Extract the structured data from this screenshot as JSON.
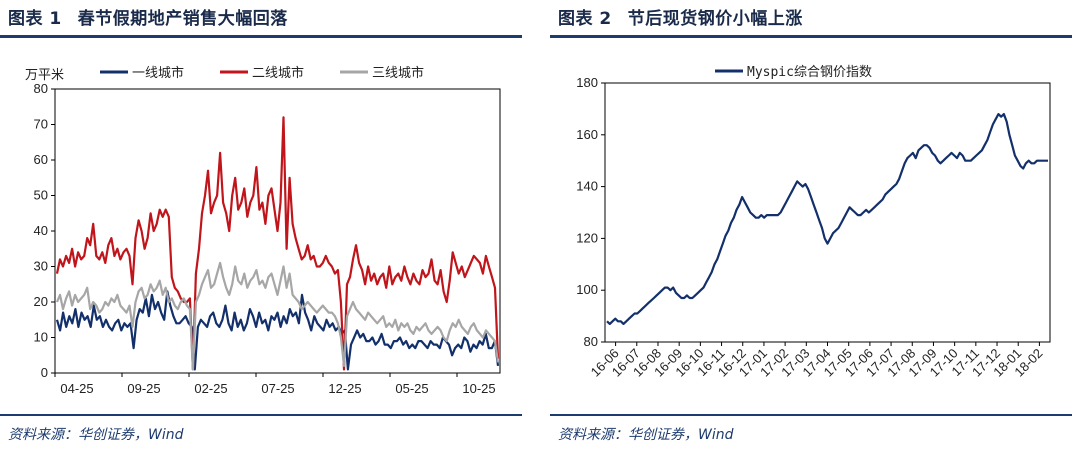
{
  "left": {
    "figure_num": "图表 1",
    "title": "春节假期地产销售大幅回落",
    "source": "资料来源：华创证券，Wind",
    "chart_data": {
      "type": "line",
      "ylabel": "万平米",
      "ylim": [
        0,
        80
      ],
      "yticks": [
        0,
        10,
        20,
        30,
        40,
        50,
        60,
        70,
        80
      ],
      "xticks": [
        "04-25",
        "09-25",
        "02-25",
        "07-25",
        "12-25",
        "05-25",
        "10-25"
      ],
      "legend_position": "top",
      "series": [
        {
          "name": "一线城市",
          "color": "#13306b",
          "values": [
            15,
            12,
            17,
            13,
            16,
            14,
            18,
            13,
            17,
            15,
            16,
            13,
            19,
            15,
            16,
            13,
            15,
            13,
            12,
            14,
            15,
            12,
            14,
            13,
            14,
            7,
            15,
            18,
            17,
            21,
            16,
            22,
            18,
            20,
            17,
            15,
            23,
            19,
            16,
            14,
            14,
            15,
            16,
            14,
            13,
            1,
            13,
            15,
            14,
            13,
            16,
            17,
            14,
            13,
            15,
            19,
            14,
            12,
            17,
            13,
            15,
            12,
            14,
            18,
            16,
            13,
            17,
            14,
            15,
            12,
            16,
            15,
            17,
            13,
            16,
            14,
            18,
            16,
            17,
            14,
            22,
            17,
            15,
            12,
            16,
            14,
            13,
            12,
            15,
            13,
            14,
            12,
            13,
            11,
            12,
            1,
            8,
            10,
            12,
            10,
            11,
            9,
            9,
            10,
            8,
            9,
            11,
            8,
            8,
            7,
            9,
            9,
            10,
            8,
            9,
            7,
            8,
            7,
            9,
            9,
            8,
            7,
            9,
            8,
            8,
            7,
            10,
            9,
            8,
            5,
            7,
            8,
            7,
            10,
            9,
            6,
            8,
            7,
            9,
            8,
            11,
            7,
            7,
            9,
            2
          ]
        },
        {
          "name": "二线城市",
          "color": "#c0151b",
          "values": [
            28,
            32,
            30,
            33,
            31,
            35,
            30,
            34,
            32,
            33,
            38,
            36,
            42,
            33,
            32,
            34,
            31,
            36,
            38,
            33,
            35,
            32,
            34,
            35,
            33,
            25,
            38,
            43,
            40,
            35,
            38,
            45,
            40,
            42,
            46,
            44,
            46,
            44,
            27,
            24,
            23,
            21,
            20,
            20,
            21,
            1,
            28,
            35,
            45,
            50,
            57,
            45,
            48,
            50,
            62,
            48,
            45,
            40,
            50,
            55,
            46,
            48,
            52,
            44,
            48,
            50,
            58,
            46,
            48,
            42,
            50,
            52,
            46,
            40,
            48,
            72,
            35,
            55,
            42,
            38,
            35,
            32,
            33,
            36,
            32,
            33,
            30,
            30,
            31,
            33,
            31,
            30,
            28,
            29,
            20,
            1,
            25,
            27,
            32,
            36,
            31,
            29,
            25,
            30,
            26,
            28,
            25,
            27,
            28,
            24,
            30,
            25,
            27,
            28,
            26,
            30,
            27,
            25,
            28,
            26,
            25,
            29,
            27,
            28,
            32,
            26,
            25,
            29,
            23,
            20,
            26,
            34,
            31,
            28,
            30,
            27,
            29,
            31,
            33,
            32,
            31,
            28,
            33,
            30,
            27,
            24,
            4
          ]
        },
        {
          "name": "三线城市",
          "color": "#a6a6a6",
          "values": [
            20,
            22,
            18,
            21,
            23,
            19,
            22,
            20,
            21,
            22,
            24,
            18,
            20,
            19,
            17,
            18,
            20,
            19,
            21,
            20,
            22,
            19,
            18,
            17,
            19,
            13,
            20,
            23,
            24,
            21,
            22,
            25,
            23,
            24,
            26,
            22,
            24,
            20,
            21,
            19,
            18,
            20,
            21,
            19,
            18,
            1,
            20,
            22,
            25,
            27,
            29,
            24,
            25,
            28,
            31,
            27,
            24,
            22,
            25,
            30,
            26,
            25,
            28,
            24,
            26,
            27,
            29,
            25,
            26,
            24,
            27,
            28,
            25,
            22,
            26,
            30,
            24,
            28,
            22,
            21,
            20,
            18,
            19,
            20,
            19,
            18,
            17,
            18,
            19,
            18,
            17,
            17,
            16,
            14,
            10,
            2,
            16,
            18,
            20,
            18,
            17,
            16,
            15,
            17,
            16,
            15,
            14,
            15,
            16,
            13,
            14,
            13,
            15,
            12,
            14,
            13,
            14,
            12,
            11,
            13,
            12,
            13,
            14,
            12,
            11,
            12,
            13,
            12,
            10,
            9,
            12,
            14,
            13,
            15,
            13,
            12,
            11,
            13,
            14,
            12,
            11,
            10,
            12,
            11,
            10,
            9,
            3
          ]
        }
      ]
    }
  },
  "right": {
    "figure_num": "图表 2",
    "title": "节后现货钢价小幅上涨",
    "source": "资料来源：华创证券，Wind",
    "chart_data": {
      "type": "line",
      "ylim": [
        80,
        180
      ],
      "yticks": [
        80,
        100,
        120,
        140,
        160,
        180
      ],
      "xticks": [
        "16-06",
        "16-07",
        "16-08",
        "16-09",
        "16-10",
        "16-11",
        "16-12",
        "17-01",
        "17-02",
        "17-03",
        "17-04",
        "17-05",
        "17-06",
        "17-07",
        "17-08",
        "17-09",
        "17-10",
        "17-11",
        "17-12",
        "18-01",
        "18-02"
      ],
      "legend_position": "top-left",
      "series": [
        {
          "name": "Myspic综合钢价指数",
          "color": "#13306b",
          "values": [
            88,
            87,
            88,
            89,
            88,
            88,
            87,
            88,
            89,
            90,
            91,
            91,
            92,
            93,
            94,
            95,
            96,
            97,
            98,
            99,
            100,
            101,
            101,
            100,
            101,
            99,
            98,
            97,
            97,
            98,
            97,
            97,
            98,
            99,
            100,
            101,
            103,
            105,
            107,
            110,
            112,
            115,
            118,
            121,
            123,
            126,
            128,
            131,
            133,
            136,
            134,
            132,
            130,
            129,
            128,
            128,
            129,
            128,
            129,
            129,
            129,
            129,
            129,
            130,
            132,
            134,
            136,
            138,
            140,
            142,
            141,
            140,
            141,
            139,
            136,
            133,
            130,
            127,
            124,
            120,
            118,
            120,
            122,
            123,
            124,
            126,
            128,
            130,
            132,
            131,
            130,
            129,
            129,
            130,
            131,
            130,
            131,
            132,
            133,
            134,
            135,
            137,
            138,
            139,
            140,
            141,
            143,
            146,
            149,
            151,
            152,
            153,
            151,
            154,
            155,
            156,
            156,
            155,
            153,
            152,
            150,
            149,
            150,
            151,
            152,
            153,
            152,
            151,
            153,
            152,
            150,
            150,
            150,
            151,
            152,
            153,
            154,
            156,
            158,
            161,
            164,
            166,
            168,
            167,
            168,
            165,
            160,
            156,
            152,
            150,
            148,
            147,
            149,
            150,
            149,
            149,
            150,
            150,
            150,
            150,
            150
          ]
        }
      ]
    }
  }
}
